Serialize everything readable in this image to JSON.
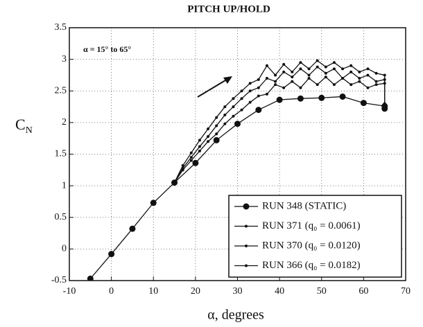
{
  "chart_data": {
    "type": "line",
    "title": "PITCH UP/HOLD",
    "annotation": "α = 15° to 65°",
    "x_label": "α, degrees",
    "y_label": {
      "main": "C",
      "sub": "N"
    },
    "xlim": [
      -10,
      70
    ],
    "xticks": [
      -10,
      0,
      10,
      20,
      30,
      40,
      50,
      60,
      70
    ],
    "ylim": [
      -0.5,
      3.5
    ],
    "yticks": [
      -0.5,
      0,
      0.5,
      1,
      1.5,
      2,
      2.5,
      3,
      3.5
    ],
    "grid": true,
    "legend": "lower right",
    "series": [
      {
        "name": "RUN 348 (STATIC)",
        "color": "#111",
        "marker": "circle",
        "x": [
          -5,
          0,
          5,
          10,
          15,
          20,
          25,
          30,
          35,
          40,
          45,
          50,
          55,
          60,
          65,
          65
        ],
        "values": [
          -0.47,
          -0.08,
          0.32,
          0.73,
          1.05,
          1.36,
          1.72,
          1.98,
          2.2,
          2.36,
          2.38,
          2.39,
          2.41,
          2.31,
          2.26,
          2.22
        ]
      },
      {
        "name": "RUN 371 (q₀ = 0.0061)",
        "color": "#111",
        "marker": "dot",
        "x": [
          15,
          17,
          19,
          21,
          23,
          25,
          27,
          29,
          31,
          33,
          35,
          37,
          39,
          41,
          43,
          45,
          47,
          49,
          51,
          53,
          55,
          57,
          59,
          61,
          63,
          65,
          65
        ],
        "values": [
          1.05,
          1.25,
          1.4,
          1.55,
          1.7,
          1.82,
          1.98,
          2.1,
          2.2,
          2.32,
          2.42,
          2.45,
          2.6,
          2.55,
          2.65,
          2.55,
          2.7,
          2.6,
          2.72,
          2.6,
          2.7,
          2.6,
          2.65,
          2.55,
          2.6,
          2.62,
          2.22
        ]
      },
      {
        "name": "RUN 370 (q₀ = 0.0120)",
        "color": "#111",
        "marker": "dot",
        "x": [
          15,
          17,
          19,
          21,
          23,
          25,
          27,
          29,
          31,
          33,
          35,
          37,
          39,
          41,
          43,
          45,
          47,
          49,
          51,
          53,
          55,
          57,
          59,
          61,
          63,
          65,
          65
        ],
        "values": [
          1.05,
          1.28,
          1.45,
          1.62,
          1.78,
          1.95,
          2.12,
          2.25,
          2.38,
          2.5,
          2.55,
          2.7,
          2.65,
          2.8,
          2.72,
          2.85,
          2.75,
          2.88,
          2.78,
          2.85,
          2.7,
          2.8,
          2.7,
          2.75,
          2.65,
          2.68,
          2.22
        ]
      },
      {
        "name": "RUN 366 (q₀ = 0.0182)",
        "color": "#111",
        "marker": "dot",
        "x": [
          15,
          17,
          19,
          21,
          23,
          25,
          27,
          29,
          31,
          33,
          35,
          37,
          39,
          41,
          43,
          45,
          47,
          49,
          51,
          53,
          55,
          57,
          59,
          61,
          63,
          65,
          65
        ],
        "values": [
          1.05,
          1.32,
          1.52,
          1.72,
          1.9,
          2.08,
          2.25,
          2.38,
          2.5,
          2.62,
          2.68,
          2.9,
          2.75,
          2.92,
          2.8,
          2.95,
          2.85,
          2.98,
          2.88,
          2.95,
          2.85,
          2.9,
          2.8,
          2.85,
          2.78,
          2.75,
          2.3
        ]
      }
    ]
  }
}
